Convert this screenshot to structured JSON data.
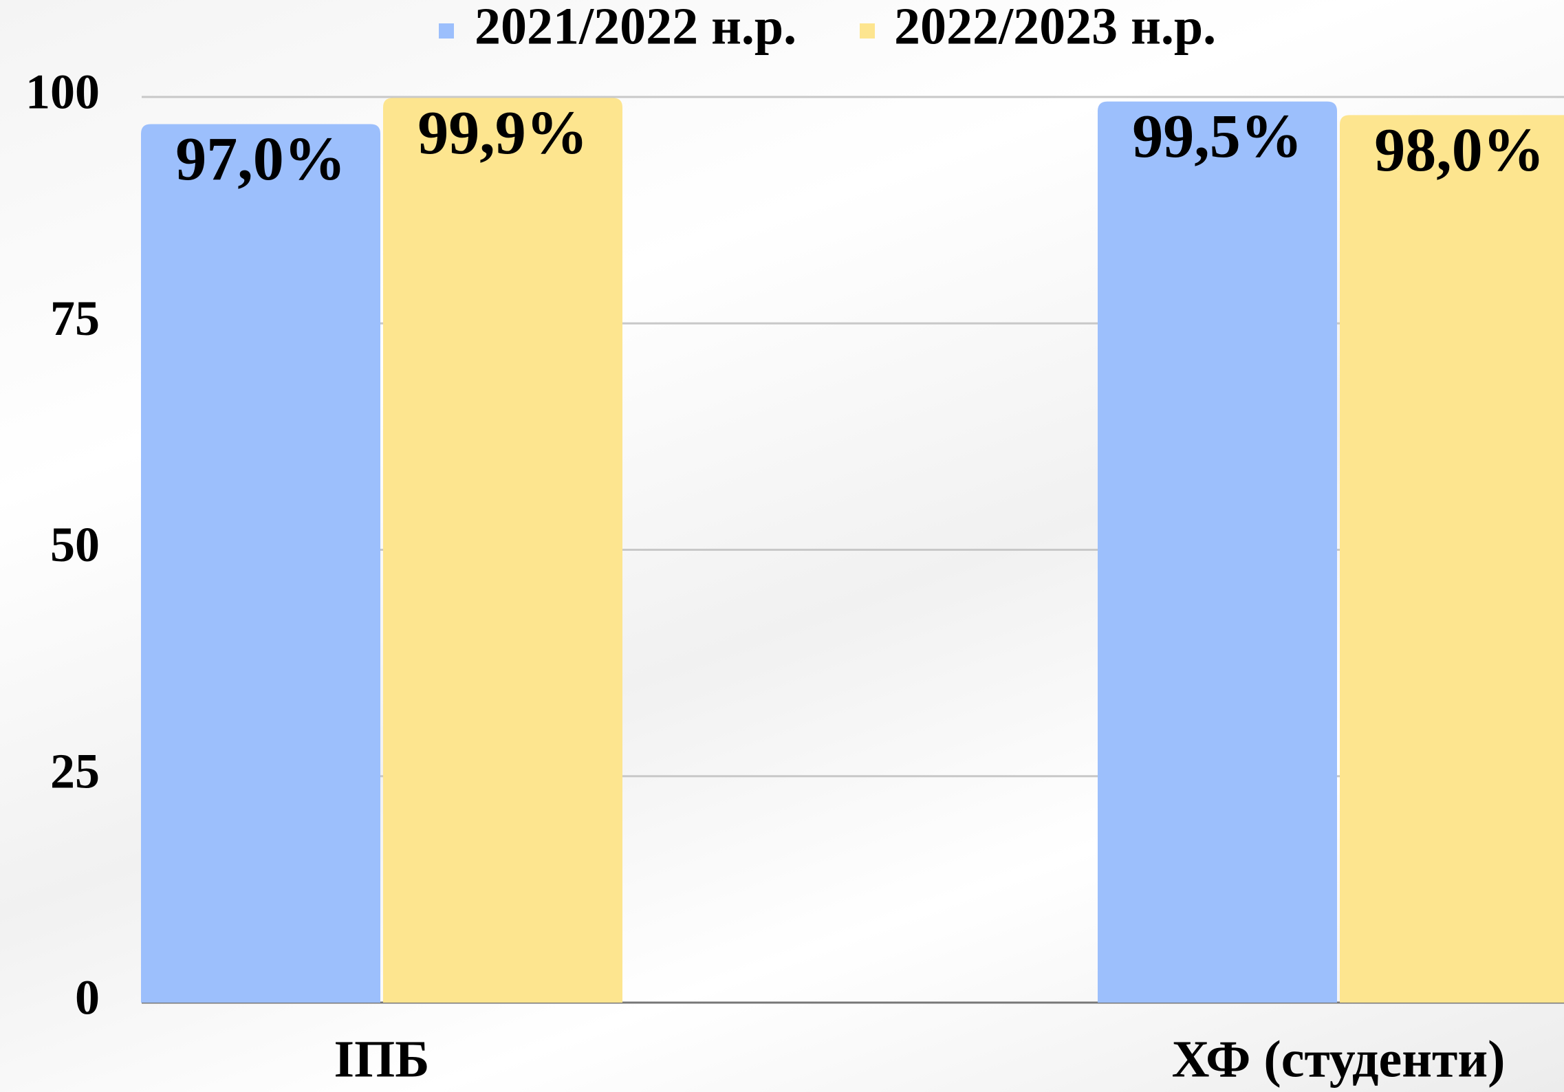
{
  "chart_data": {
    "type": "bar",
    "categories": [
      "ІПБ",
      "ХФ (студенти)"
    ],
    "series": [
      {
        "name": "2021/2022 н.р.",
        "color": "#9cbffc",
        "values": [
          97.0,
          99.5
        ],
        "value_labels": [
          "97,0%",
          "99,5%"
        ]
      },
      {
        "name": "2022/2023 н.р.",
        "color": "#fde58f",
        "values": [
          99.9,
          98.0
        ],
        "value_labels": [
          "99,9%",
          "98,0%"
        ]
      }
    ],
    "ylim": [
      0,
      100
    ],
    "yticks": [
      0,
      25,
      50,
      75,
      100
    ],
    "grid": true,
    "legend": "top"
  }
}
